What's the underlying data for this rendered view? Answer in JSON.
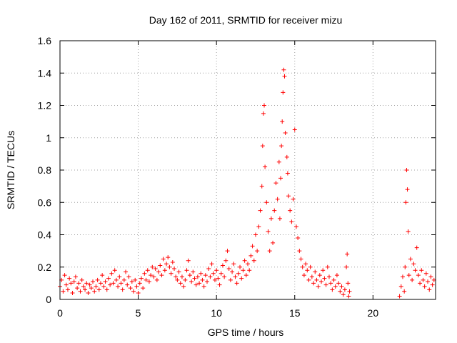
{
  "chart_data": {
    "type": "scatter",
    "title": "Day 162 of 2011, SRMTID for receiver mizu",
    "xlabel": "GPS time / hours",
    "ylabel": "SRMTID / TECUs",
    "xlim": [
      0,
      24
    ],
    "ylim": [
      0,
      1.6
    ],
    "x_ticks": [
      0,
      5,
      10,
      15,
      20
    ],
    "y_ticks": [
      0,
      0.2,
      0.4,
      0.6,
      0.8,
      1,
      1.2,
      1.4,
      1.6
    ],
    "y_tick_labels": [
      "0",
      "0.2",
      "0.4",
      "0.6",
      "0.8",
      "1",
      "1.2",
      "1.4",
      "1.6"
    ],
    "grid": true,
    "marker": "+",
    "color": "#ff0000",
    "series": [
      {
        "name": "mizu",
        "points": [
          [
            0.0,
            0.08
          ],
          [
            0.1,
            0.12
          ],
          [
            0.2,
            0.05
          ],
          [
            0.3,
            0.15
          ],
          [
            0.4,
            0.09
          ],
          [
            0.5,
            0.06
          ],
          [
            0.6,
            0.13
          ],
          [
            0.7,
            0.1
          ],
          [
            0.8,
            0.04
          ],
          [
            0.9,
            0.11
          ],
          [
            1.0,
            0.14
          ],
          [
            1.1,
            0.07
          ],
          [
            1.2,
            0.1
          ],
          [
            1.3,
            0.05
          ],
          [
            1.4,
            0.12
          ],
          [
            1.5,
            0.08
          ],
          [
            1.6,
            0.06
          ],
          [
            1.7,
            0.1
          ],
          [
            1.8,
            0.04
          ],
          [
            1.9,
            0.09
          ],
          [
            2.0,
            0.07
          ],
          [
            2.1,
            0.11
          ],
          [
            2.2,
            0.05
          ],
          [
            2.3,
            0.08
          ],
          [
            2.4,
            0.12
          ],
          [
            2.5,
            0.06
          ],
          [
            2.6,
            0.1
          ],
          [
            2.7,
            0.15
          ],
          [
            2.8,
            0.08
          ],
          [
            2.9,
            0.11
          ],
          [
            3.0,
            0.06
          ],
          [
            3.1,
            0.13
          ],
          [
            3.2,
            0.09
          ],
          [
            3.3,
            0.16
          ],
          [
            3.4,
            0.1
          ],
          [
            3.5,
            0.18
          ],
          [
            3.6,
            0.12
          ],
          [
            3.7,
            0.08
          ],
          [
            3.8,
            0.14
          ],
          [
            3.9,
            0.1
          ],
          [
            4.0,
            0.06
          ],
          [
            4.1,
            0.12
          ],
          [
            4.2,
            0.17
          ],
          [
            4.3,
            0.09
          ],
          [
            4.4,
            0.14
          ],
          [
            4.5,
            0.07
          ],
          [
            4.6,
            0.11
          ],
          [
            4.7,
            0.05
          ],
          [
            4.8,
            0.12
          ],
          [
            4.9,
            0.08
          ],
          [
            5.0,
            0.04
          ],
          [
            5.1,
            0.1
          ],
          [
            5.2,
            0.13
          ],
          [
            5.3,
            0.07
          ],
          [
            5.4,
            0.16
          ],
          [
            5.5,
            0.12
          ],
          [
            5.6,
            0.18
          ],
          [
            5.7,
            0.11
          ],
          [
            5.8,
            0.15
          ],
          [
            5.9,
            0.2
          ],
          [
            6.0,
            0.14
          ],
          [
            6.1,
            0.19
          ],
          [
            6.2,
            0.12
          ],
          [
            6.3,
            0.17
          ],
          [
            6.4,
            0.21
          ],
          [
            6.5,
            0.15
          ],
          [
            6.6,
            0.25
          ],
          [
            6.7,
            0.18
          ],
          [
            6.8,
            0.22
          ],
          [
            6.9,
            0.26
          ],
          [
            7.0,
            0.2
          ],
          [
            7.1,
            0.16
          ],
          [
            7.2,
            0.23
          ],
          [
            7.3,
            0.19
          ],
          [
            7.4,
            0.14
          ],
          [
            7.5,
            0.12
          ],
          [
            7.6,
            0.17
          ],
          [
            7.7,
            0.1
          ],
          [
            7.8,
            0.14
          ],
          [
            7.9,
            0.08
          ],
          [
            8.0,
            0.12
          ],
          [
            8.1,
            0.18
          ],
          [
            8.2,
            0.24
          ],
          [
            8.3,
            0.15
          ],
          [
            8.4,
            0.11
          ],
          [
            8.5,
            0.17
          ],
          [
            8.6,
            0.13
          ],
          [
            8.7,
            0.09
          ],
          [
            8.8,
            0.14
          ],
          [
            8.9,
            0.1
          ],
          [
            9.0,
            0.16
          ],
          [
            9.1,
            0.12
          ],
          [
            9.2,
            0.08
          ],
          [
            9.3,
            0.15
          ],
          [
            9.4,
            0.11
          ],
          [
            9.5,
            0.19
          ],
          [
            9.6,
            0.14
          ],
          [
            9.7,
            0.22
          ],
          [
            9.8,
            0.16
          ],
          [
            9.9,
            0.12
          ],
          [
            10.0,
            0.18
          ],
          [
            10.1,
            0.13
          ],
          [
            10.2,
            0.09
          ],
          [
            10.3,
            0.16
          ],
          [
            10.4,
            0.21
          ],
          [
            10.5,
            0.14
          ],
          [
            10.6,
            0.24
          ],
          [
            10.7,
            0.3
          ],
          [
            10.8,
            0.19
          ],
          [
            10.9,
            0.12
          ],
          [
            11.0,
            0.17
          ],
          [
            11.1,
            0.22
          ],
          [
            11.2,
            0.14
          ],
          [
            11.3,
            0.1
          ],
          [
            11.4,
            0.16
          ],
          [
            11.5,
            0.2
          ],
          [
            11.6,
            0.13
          ],
          [
            11.7,
            0.18
          ],
          [
            11.8,
            0.24
          ],
          [
            11.9,
            0.15
          ],
          [
            12.0,
            0.22
          ],
          [
            12.1,
            0.18
          ],
          [
            12.2,
            0.27
          ],
          [
            12.3,
            0.33
          ],
          [
            12.4,
            0.24
          ],
          [
            12.5,
            0.4
          ],
          [
            12.6,
            0.3
          ],
          [
            12.7,
            0.45
          ],
          [
            12.8,
            0.55
          ],
          [
            12.9,
            0.7
          ],
          [
            12.95,
            0.95
          ],
          [
            13.0,
            1.15
          ],
          [
            13.05,
            1.2
          ],
          [
            13.1,
            0.82
          ],
          [
            13.2,
            0.6
          ],
          [
            13.3,
            0.42
          ],
          [
            13.4,
            0.3
          ],
          [
            13.5,
            0.5
          ],
          [
            13.6,
            0.35
          ],
          [
            13.7,
            0.55
          ],
          [
            13.8,
            0.72
          ],
          [
            13.9,
            0.62
          ],
          [
            14.0,
            0.85
          ],
          [
            14.05,
            0.5
          ],
          [
            14.1,
            0.75
          ],
          [
            14.15,
            0.95
          ],
          [
            14.2,
            1.1
          ],
          [
            14.25,
            1.28
          ],
          [
            14.3,
            1.42
          ],
          [
            14.35,
            1.38
          ],
          [
            14.4,
            1.03
          ],
          [
            14.5,
            0.88
          ],
          [
            14.55,
            0.78
          ],
          [
            14.6,
            0.64
          ],
          [
            14.7,
            0.55
          ],
          [
            14.8,
            0.48
          ],
          [
            14.9,
            0.62
          ],
          [
            15.0,
            1.05
          ],
          [
            15.1,
            0.45
          ],
          [
            15.2,
            0.38
          ],
          [
            15.3,
            0.3
          ],
          [
            15.4,
            0.25
          ],
          [
            15.5,
            0.2
          ],
          [
            15.6,
            0.15
          ],
          [
            15.7,
            0.22
          ],
          [
            15.8,
            0.18
          ],
          [
            15.9,
            0.12
          ],
          [
            16.0,
            0.2
          ],
          [
            16.1,
            0.14
          ],
          [
            16.2,
            0.1
          ],
          [
            16.3,
            0.17
          ],
          [
            16.4,
            0.12
          ],
          [
            16.5,
            0.08
          ],
          [
            16.6,
            0.15
          ],
          [
            16.7,
            0.11
          ],
          [
            16.8,
            0.18
          ],
          [
            16.9,
            0.13
          ],
          [
            17.0,
            0.09
          ],
          [
            17.1,
            0.2
          ],
          [
            17.2,
            0.14
          ],
          [
            17.3,
            0.1
          ],
          [
            17.4,
            0.06
          ],
          [
            17.5,
            0.12
          ],
          [
            17.6,
            0.08
          ],
          [
            17.7,
            0.15
          ],
          [
            17.8,
            0.1
          ],
          [
            17.9,
            0.05
          ],
          [
            18.0,
            0.08
          ],
          [
            18.1,
            0.03
          ],
          [
            18.2,
            0.06
          ],
          [
            18.3,
            0.2
          ],
          [
            18.35,
            0.28
          ],
          [
            18.4,
            0.1
          ],
          [
            18.45,
            0.02
          ],
          [
            18.5,
            0.05
          ],
          [
            21.7,
            0.02
          ],
          [
            21.8,
            0.08
          ],
          [
            21.9,
            0.14
          ],
          [
            22.0,
            0.05
          ],
          [
            22.05,
            0.2
          ],
          [
            22.1,
            0.6
          ],
          [
            22.15,
            0.8
          ],
          [
            22.2,
            0.68
          ],
          [
            22.25,
            0.42
          ],
          [
            22.3,
            0.15
          ],
          [
            22.4,
            0.25
          ],
          [
            22.5,
            0.12
          ],
          [
            22.6,
            0.22
          ],
          [
            22.7,
            0.18
          ],
          [
            22.8,
            0.32
          ],
          [
            22.9,
            0.15
          ],
          [
            23.0,
            0.1
          ],
          [
            23.1,
            0.18
          ],
          [
            23.2,
            0.12
          ],
          [
            23.3,
            0.08
          ],
          [
            23.4,
            0.16
          ],
          [
            23.5,
            0.11
          ],
          [
            23.6,
            0.06
          ],
          [
            23.7,
            0.14
          ],
          [
            23.8,
            0.09
          ],
          [
            23.9,
            0.12
          ]
        ]
      }
    ]
  }
}
